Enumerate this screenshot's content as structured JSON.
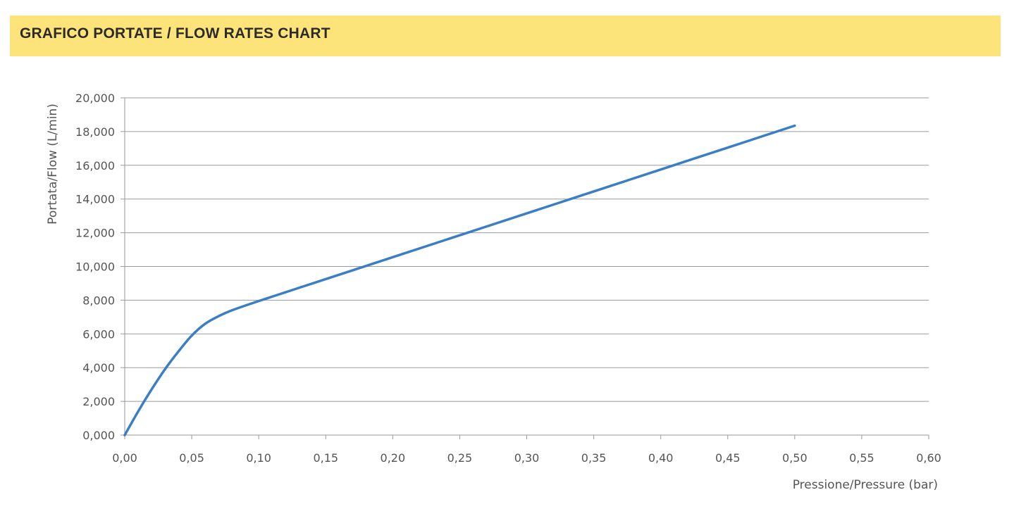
{
  "header": {
    "title": "GRAFICO PORTATE / FLOW RATES CHART"
  },
  "colors": {
    "header_bg": "#fde47a",
    "line": "#3a7ec6",
    "grid": "#9a9a9a",
    "text": "#555555"
  },
  "chart_data": {
    "type": "line",
    "title": "",
    "xlabel": "Pressione/Pressure (bar)",
    "ylabel": "Portata/Flow (L/min)",
    "xlim": [
      0,
      0.6
    ],
    "ylim": [
      0,
      20000
    ],
    "grid": true,
    "x_ticks": [
      0,
      0.05,
      0.1,
      0.15,
      0.2,
      0.25,
      0.3,
      0.35,
      0.4,
      0.45,
      0.5,
      0.55,
      0.6
    ],
    "x_tick_labels": [
      "0,00",
      "0,05",
      "0,10",
      "0,15",
      "0,20",
      "0,25",
      "0,30",
      "0,35",
      "0,40",
      "0,45",
      "0,50",
      "0,55",
      "0,60"
    ],
    "y_ticks": [
      0,
      2000,
      4000,
      6000,
      8000,
      10000,
      12000,
      14000,
      16000,
      18000,
      20000
    ],
    "y_tick_labels": [
      "0,000",
      "2,000",
      "4,000",
      "6,000",
      "8,000",
      "10,000",
      "12,000",
      "14,000",
      "16,000",
      "18,000",
      "20,000"
    ],
    "series": [
      {
        "x": [
          0,
          0.01,
          0.02,
          0.03,
          0.04,
          0.05,
          0.06,
          0.07,
          0.08,
          0.1,
          0.15,
          0.2,
          0.25,
          0.3,
          0.35,
          0.4,
          0.45,
          0.5
        ],
        "values": [
          0,
          1400,
          2700,
          3900,
          4950,
          5900,
          6600,
          7050,
          7400,
          7950,
          9250,
          10550,
          11850,
          13150,
          14450,
          15750,
          17050,
          18350
        ]
      }
    ]
  }
}
